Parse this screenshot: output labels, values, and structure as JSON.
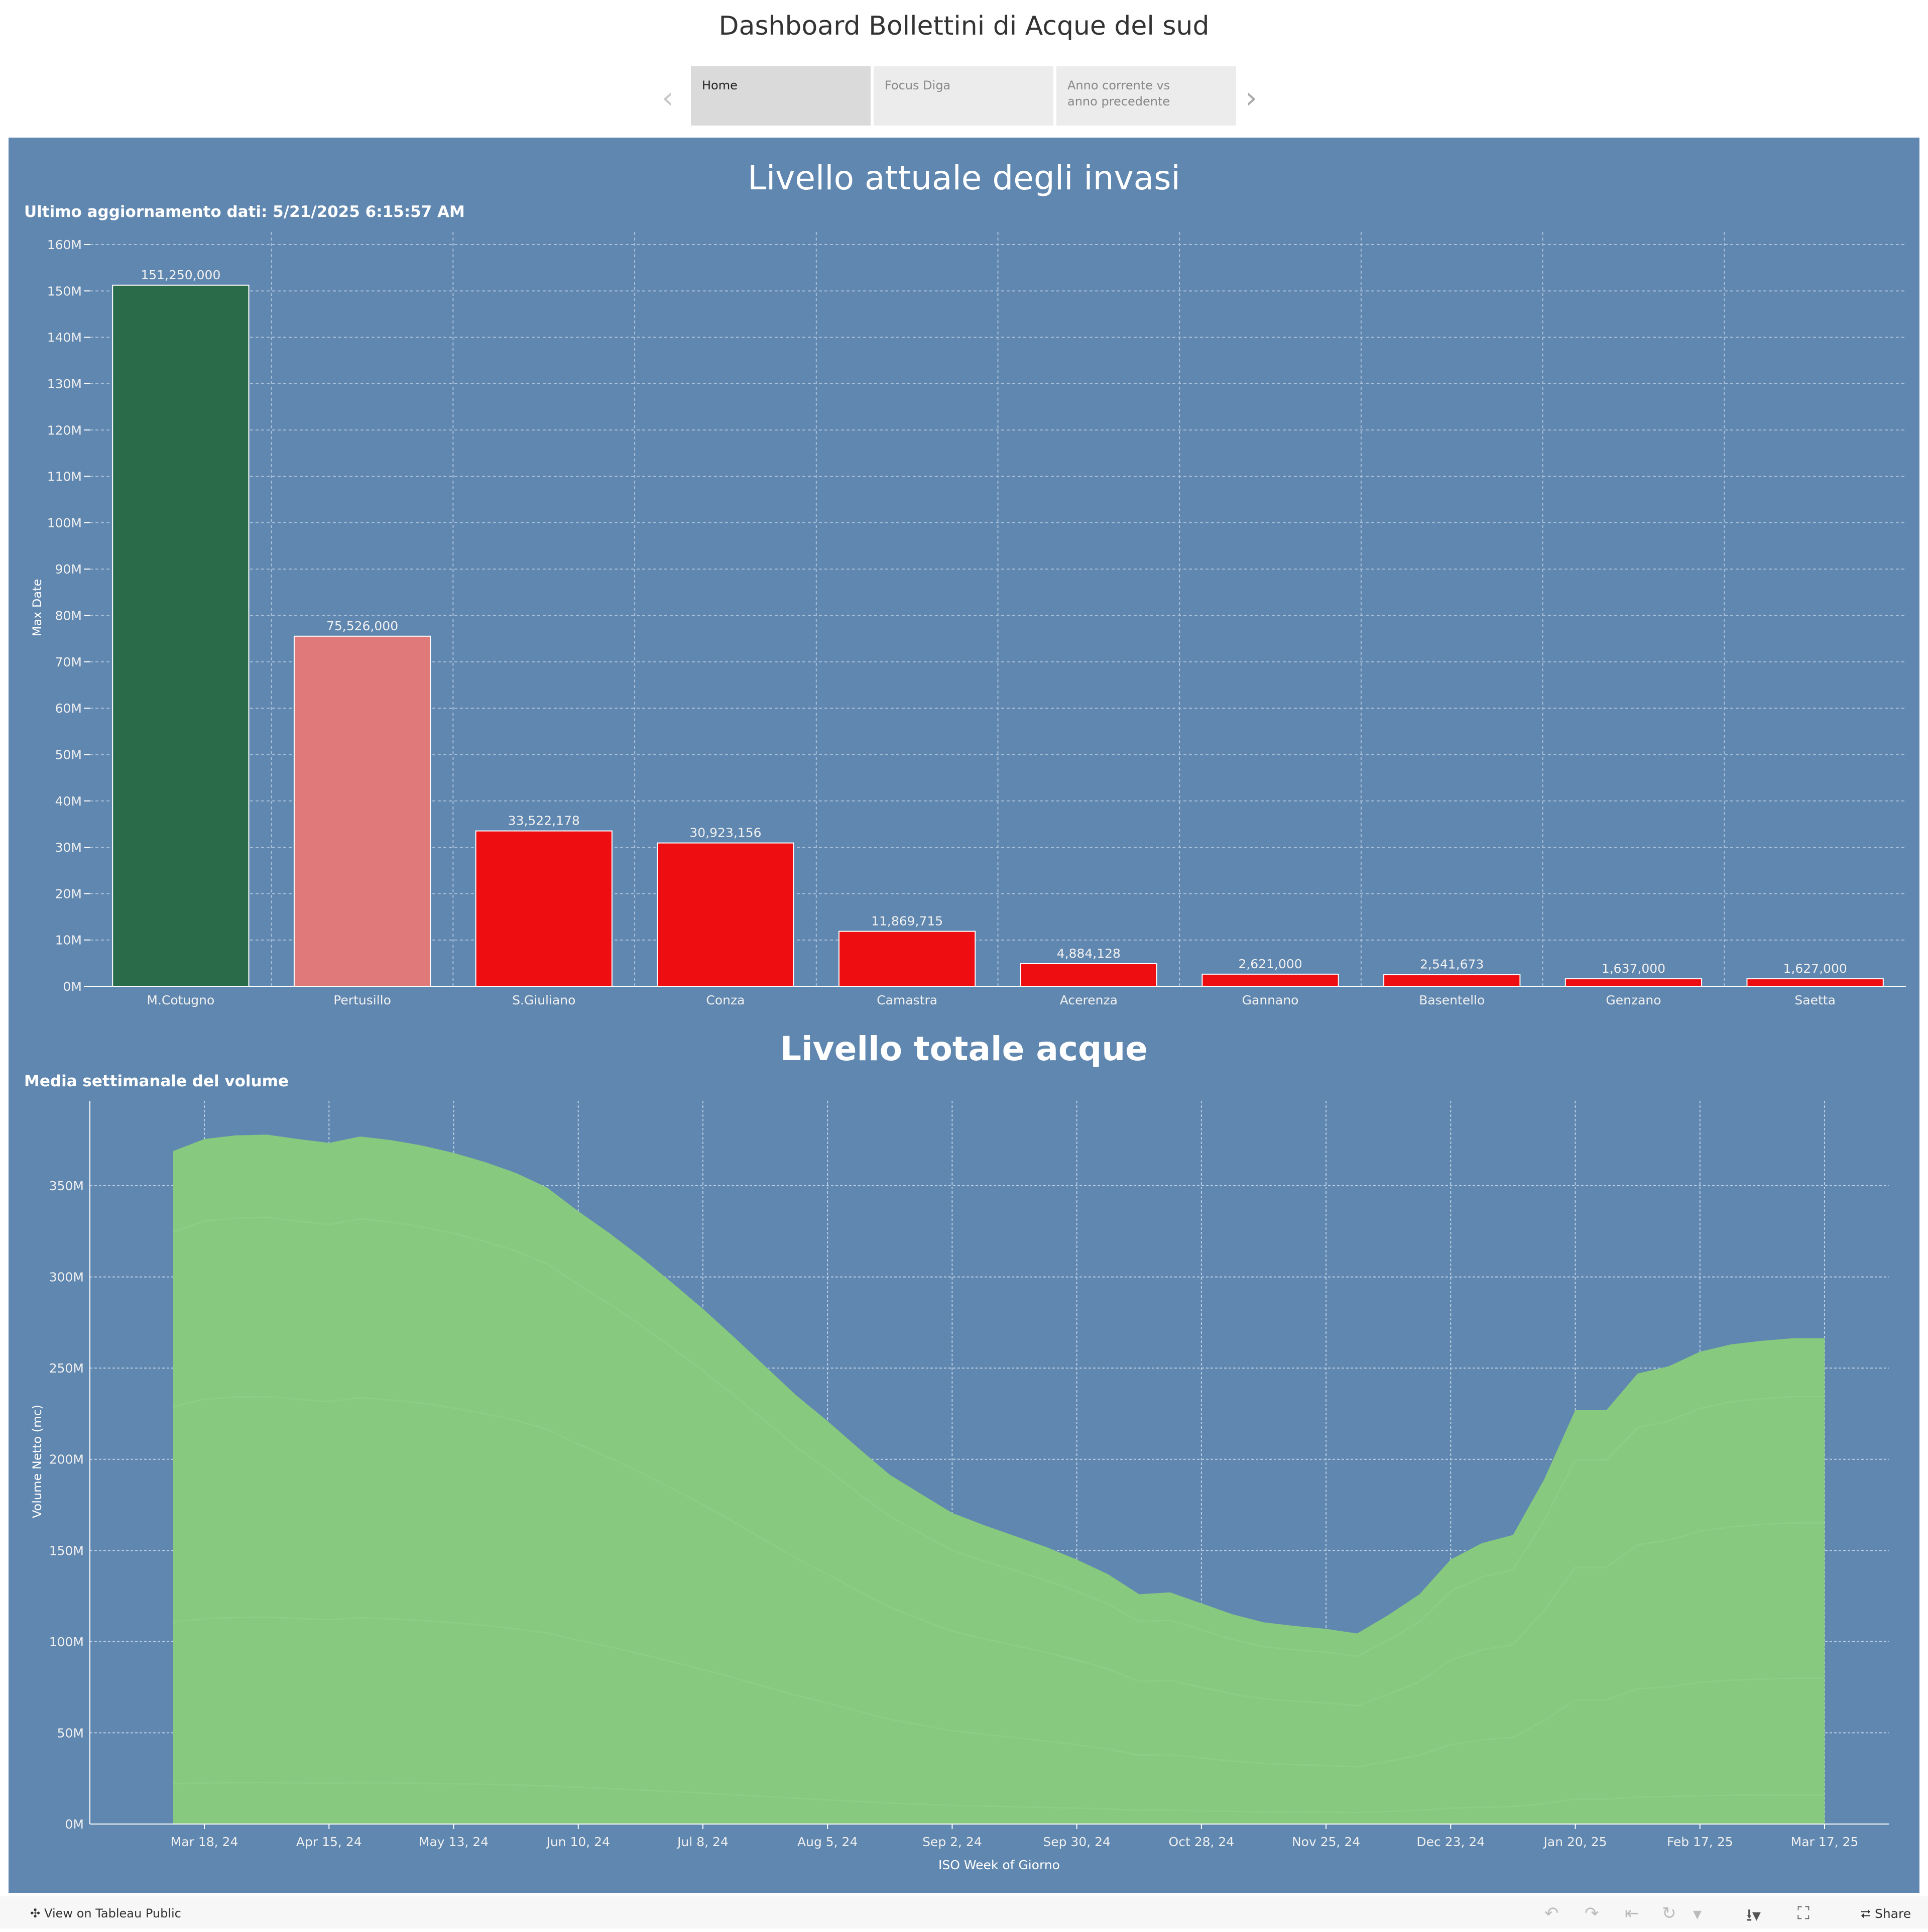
{
  "header": {
    "title": "Dashboard Bollettini di Acque del sud"
  },
  "tabs": [
    {
      "label": "Home",
      "active": true
    },
    {
      "label": "Focus Diga"
    },
    {
      "label": "Anno corrente vs anno precedente"
    }
  ],
  "section1": {
    "title": "Livello attuale degli invasi",
    "subtitle": "Ultimo aggiornamento dati: 5/21/2025 6:15:57 AM"
  },
  "section2": {
    "title": "Livello totale acque",
    "subtitle": "Media settimanale del volume"
  },
  "footer": {
    "view_label": "View on Tableau Public",
    "share_label": "Share"
  },
  "chart_data": [
    {
      "type": "bar",
      "ylabel": "Max Date",
      "ylim": [
        0,
        160000000
      ],
      "yticks": [
        "0M",
        "10M",
        "20M",
        "30M",
        "40M",
        "50M",
        "60M",
        "70M",
        "80M",
        "90M",
        "100M",
        "110M",
        "120M",
        "130M",
        "140M",
        "150M",
        "160M"
      ],
      "categories": [
        "M.Cotugno",
        "Pertusillo",
        "S.Giuliano",
        "Conza",
        "Camastra",
        "Acerenza",
        "Gannano",
        "Basentello",
        "Genzano",
        "Saetta"
      ],
      "values": [
        151250000,
        75526000,
        33522178,
        30923156,
        11869715,
        4884128,
        2621000,
        2541673,
        1637000,
        1627000
      ],
      "labels": [
        "151,250,000",
        "75,526,000",
        "33,522,178",
        "30,923,156",
        "11,869,715",
        "4,884,128",
        "2,621,000",
        "2,541,673",
        "1,637,000",
        "1,627,000"
      ],
      "colors": [
        "#2a6b4a",
        "#e07a7a",
        "#ee0d11",
        "#ee0d11",
        "#ee0d11",
        "#ee0d11",
        "#ee0d11",
        "#ee0d11",
        "#ee0d11",
        "#ee0d11"
      ],
      "grid": true
    },
    {
      "type": "area",
      "xlabel": "ISO Week of Giorno",
      "ylabel": "Volume Netto (mc)",
      "ylim": [
        0,
        390000000
      ],
      "yticks": [
        "0M",
        "50M",
        "100M",
        "150M",
        "200M",
        "250M",
        "300M",
        "350M"
      ],
      "xticks": [
        "Mar 18, 24",
        "Apr 15, 24",
        "May 13, 24",
        "Jun 10, 24",
        "Jul 8, 24",
        "Aug 5, 24",
        "Sep 2, 24",
        "Sep 30, 24",
        "Oct 28, 24",
        "Nov 25, 24",
        "Dec 23, 24",
        "Jan 20, 25",
        "Feb 17, 25",
        "Mar 17, 25"
      ],
      "values_million": [
        369,
        375.6,
        377.6,
        378,
        375.6,
        373.5,
        377,
        375,
        372,
        368,
        363,
        357,
        349,
        336,
        324,
        311,
        297,
        282.5,
        267,
        251,
        235,
        221,
        206,
        191.5,
        181,
        170.6,
        164,
        158,
        152,
        145,
        137,
        126,
        127,
        121,
        115,
        110.6,
        108.6,
        107,
        104.5,
        114.6,
        126,
        145,
        154,
        158.5,
        189,
        227,
        227,
        247,
        251,
        259,
        263,
        265,
        266.4,
        266.4
      ],
      "color": "#86c97f",
      "grid": true
    }
  ],
  "colors": {
    "panel": "#6087b0",
    "area": "#86c97f"
  }
}
